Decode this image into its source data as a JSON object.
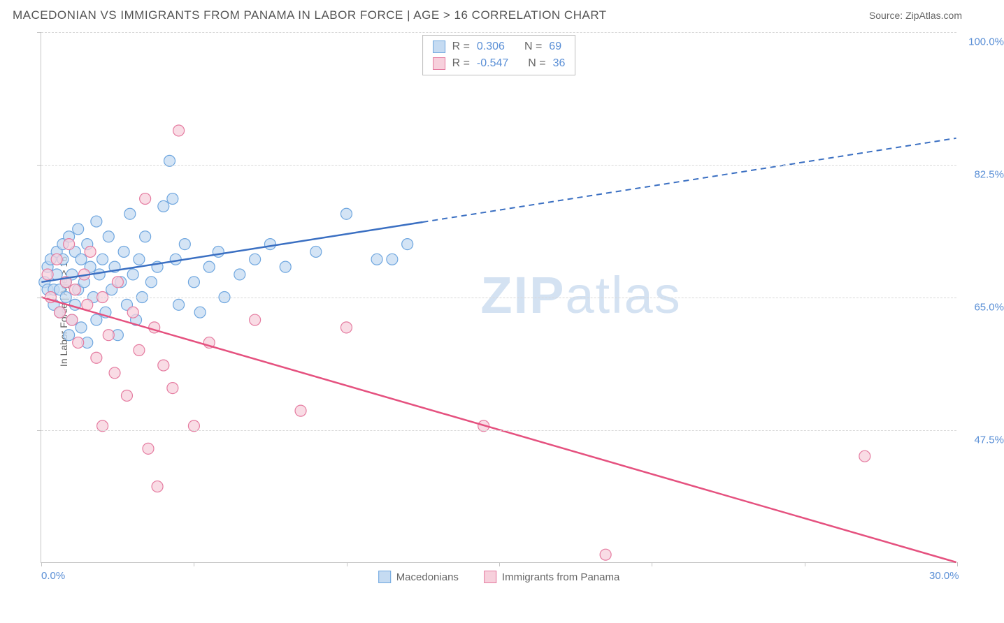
{
  "header": {
    "title": "MACEDONIAN VS IMMIGRANTS FROM PANAMA IN LABOR FORCE | AGE > 16 CORRELATION CHART",
    "source": "Source: ZipAtlas.com"
  },
  "watermark": {
    "zip": "ZIP",
    "atlas": "atlas"
  },
  "chart": {
    "type": "scatter-with-regression",
    "xlabel": "",
    "ylabel": "In Labor Force | Age > 16",
    "xlim": [
      0,
      30
    ],
    "ylim": [
      30,
      100
    ],
    "x_ticks": [
      0,
      5,
      10,
      15,
      20,
      25,
      30
    ],
    "x_tick_labels": [
      "0.0%",
      "",
      "",
      "",
      "",
      "",
      "30.0%"
    ],
    "y_gridlines": [
      47.5,
      65.0,
      82.5,
      100.0
    ],
    "y_tick_labels": [
      "47.5%",
      "65.0%",
      "82.5%",
      "100.0%"
    ],
    "background_color": "#ffffff",
    "grid_color": "#d8d8d8",
    "axis_color": "#c5c5c5",
    "label_color": "#5a8fd6",
    "axis_label_color": "#646464",
    "axis_label_fontsize": 14,
    "tick_fontsize": 15,
    "series": [
      {
        "name": "Macedonians",
        "color_fill": "#c5dbf2",
        "color_stroke": "#6ea6df",
        "line_color": "#3a6fc2",
        "swatch_border": "#6ea6df",
        "r_label": "R =",
        "r_value": "0.306",
        "n_label": "N =",
        "n_value": "69",
        "marker_radius": 8,
        "trend": {
          "x1": 0,
          "y1": 67,
          "x2": 30,
          "y2": 86,
          "solid_until_x": 12.5
        },
        "points": [
          [
            0.1,
            67
          ],
          [
            0.2,
            69
          ],
          [
            0.2,
            66
          ],
          [
            0.3,
            70
          ],
          [
            0.4,
            66
          ],
          [
            0.4,
            64
          ],
          [
            0.5,
            68
          ],
          [
            0.5,
            71
          ],
          [
            0.6,
            66
          ],
          [
            0.6,
            63
          ],
          [
            0.7,
            70
          ],
          [
            0.7,
            72
          ],
          [
            0.8,
            65
          ],
          [
            0.8,
            67
          ],
          [
            0.9,
            73
          ],
          [
            0.9,
            60
          ],
          [
            1.0,
            68
          ],
          [
            1.0,
            62
          ],
          [
            1.1,
            71
          ],
          [
            1.1,
            64
          ],
          [
            1.2,
            74
          ],
          [
            1.2,
            66
          ],
          [
            1.3,
            70
          ],
          [
            1.3,
            61
          ],
          [
            1.4,
            67
          ],
          [
            1.5,
            72
          ],
          [
            1.5,
            59
          ],
          [
            1.6,
            69
          ],
          [
            1.7,
            65
          ],
          [
            1.8,
            75
          ],
          [
            1.8,
            62
          ],
          [
            1.9,
            68
          ],
          [
            2.0,
            70
          ],
          [
            2.1,
            63
          ],
          [
            2.2,
            73
          ],
          [
            2.3,
            66
          ],
          [
            2.4,
            69
          ],
          [
            2.5,
            60
          ],
          [
            2.6,
            67
          ],
          [
            2.7,
            71
          ],
          [
            2.8,
            64
          ],
          [
            2.9,
            76
          ],
          [
            3.0,
            68
          ],
          [
            3.1,
            62
          ],
          [
            3.2,
            70
          ],
          [
            3.3,
            65
          ],
          [
            3.4,
            73
          ],
          [
            3.6,
            67
          ],
          [
            3.8,
            69
          ],
          [
            4.0,
            77
          ],
          [
            4.2,
            83
          ],
          [
            4.3,
            78
          ],
          [
            4.4,
            70
          ],
          [
            4.5,
            64
          ],
          [
            4.7,
            72
          ],
          [
            5.0,
            67
          ],
          [
            5.2,
            63
          ],
          [
            5.5,
            69
          ],
          [
            5.8,
            71
          ],
          [
            6.0,
            65
          ],
          [
            6.5,
            68
          ],
          [
            7.0,
            70
          ],
          [
            7.5,
            72
          ],
          [
            8.0,
            69
          ],
          [
            9.0,
            71
          ],
          [
            10.0,
            76
          ],
          [
            11.0,
            70
          ],
          [
            11.5,
            70
          ],
          [
            12.0,
            72
          ]
        ]
      },
      {
        "name": "Immigrants from Panama",
        "color_fill": "#f7d0dc",
        "color_stroke": "#e57ba0",
        "line_color": "#e5517f",
        "swatch_border": "#e57ba0",
        "r_label": "R =",
        "r_value": "-0.547",
        "n_label": "N =",
        "n_value": "36",
        "marker_radius": 8,
        "trend": {
          "x1": 0,
          "y1": 65,
          "x2": 30,
          "y2": 30,
          "solid_until_x": 30
        },
        "points": [
          [
            0.2,
            68
          ],
          [
            0.3,
            65
          ],
          [
            0.5,
            70
          ],
          [
            0.6,
            63
          ],
          [
            0.8,
            67
          ],
          [
            0.9,
            72
          ],
          [
            1.0,
            62
          ],
          [
            1.1,
            66
          ],
          [
            1.2,
            59
          ],
          [
            1.4,
            68
          ],
          [
            1.5,
            64
          ],
          [
            1.6,
            71
          ],
          [
            1.8,
            57
          ],
          [
            2.0,
            65
          ],
          [
            2.0,
            48
          ],
          [
            2.2,
            60
          ],
          [
            2.4,
            55
          ],
          [
            2.5,
            67
          ],
          [
            2.8,
            52
          ],
          [
            3.0,
            63
          ],
          [
            3.2,
            58
          ],
          [
            3.4,
            78
          ],
          [
            3.5,
            45
          ],
          [
            3.7,
            61
          ],
          [
            3.8,
            40
          ],
          [
            4.0,
            56
          ],
          [
            4.3,
            53
          ],
          [
            4.5,
            87
          ],
          [
            5.0,
            48
          ],
          [
            5.5,
            59
          ],
          [
            7.0,
            62
          ],
          [
            8.5,
            50
          ],
          [
            10.0,
            61
          ],
          [
            14.5,
            48
          ],
          [
            18.5,
            31
          ],
          [
            27.0,
            44
          ]
        ]
      }
    ]
  },
  "legend": {
    "series1": "Macedonians",
    "series2": "Immigrants from Panama"
  }
}
